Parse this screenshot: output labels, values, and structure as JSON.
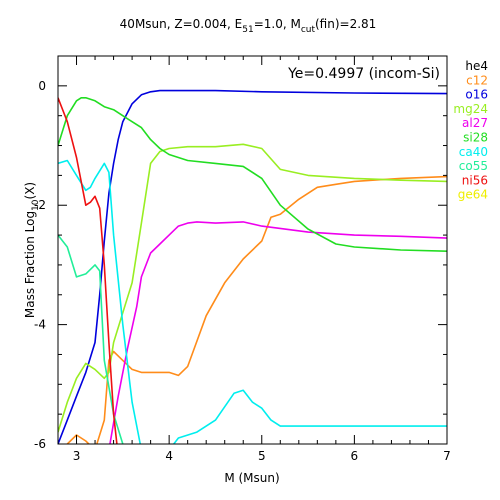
{
  "chart_data": {
    "type": "line",
    "title": {
      "main": "40Msun, Z=0.004, E",
      "e_sub": "51",
      "mid": "=1.0, M",
      "m_sub": "cut",
      "end": "(fin)=2.81"
    },
    "annotation": "Ye=0.4997 (incom-Si)",
    "xlabel": "M (Msun)",
    "ylabel": {
      "main": "Mass Fraction Log",
      "sub": "10",
      "end": "(X)"
    },
    "xlim": [
      2.8,
      7.0
    ],
    "ylim": [
      -6,
      0.5
    ],
    "xticks": [
      3,
      4,
      5,
      6,
      7
    ],
    "yticks": [
      0,
      -2,
      -4,
      -6
    ],
    "legend_position": "right",
    "series": [
      {
        "name": "he4",
        "color": "#000000",
        "x": [],
        "y": []
      },
      {
        "name": "c12",
        "color": "#ff8c1a",
        "x": [
          2.8,
          2.9,
          3.0,
          3.1,
          3.2,
          3.3,
          3.35,
          3.4,
          3.5,
          3.6,
          3.7,
          3.8,
          4.0,
          4.1,
          4.2,
          4.4,
          4.6,
          4.8,
          5.0,
          5.1,
          5.2,
          5.4,
          5.6,
          5.8,
          6.0,
          6.5,
          7.0
        ],
        "y": [
          -6.1,
          -6.0,
          -5.85,
          -5.95,
          -6.1,
          -5.6,
          -4.6,
          -4.45,
          -4.6,
          -4.75,
          -4.8,
          -4.8,
          -4.8,
          -4.85,
          -4.7,
          -3.85,
          -3.3,
          -2.9,
          -2.6,
          -2.2,
          -2.15,
          -1.9,
          -1.7,
          -1.65,
          -1.6,
          -1.55,
          -1.52
        ]
      },
      {
        "name": "o16",
        "color": "#0000dd",
        "x": [
          2.8,
          2.9,
          3.0,
          3.1,
          3.2,
          3.25,
          3.3,
          3.35,
          3.4,
          3.45,
          3.5,
          3.6,
          3.7,
          3.8,
          3.9,
          4.0,
          4.5,
          5.0,
          6.0,
          7.0
        ],
        "y": [
          -6.0,
          -5.6,
          -5.2,
          -4.8,
          -4.3,
          -3.5,
          -2.6,
          -1.8,
          -1.3,
          -0.9,
          -0.6,
          -0.3,
          -0.15,
          -0.1,
          -0.08,
          -0.08,
          -0.08,
          -0.1,
          -0.12,
          -0.13
        ]
      },
      {
        "name": "mg24",
        "color": "#99ee22",
        "x": [
          2.8,
          2.9,
          3.0,
          3.1,
          3.2,
          3.3,
          3.35,
          3.4,
          3.5,
          3.6,
          3.7,
          3.8,
          3.9,
          4.0,
          4.2,
          4.5,
          4.8,
          5.0,
          5.2,
          5.5,
          6.0,
          6.5,
          7.0
        ],
        "y": [
          -5.8,
          -5.3,
          -4.9,
          -4.65,
          -4.75,
          -4.9,
          -4.8,
          -4.3,
          -3.8,
          -3.3,
          -2.3,
          -1.3,
          -1.1,
          -1.05,
          -1.02,
          -1.02,
          -0.98,
          -1.05,
          -1.4,
          -1.5,
          -1.55,
          -1.58,
          -1.6
        ]
      },
      {
        "name": "al27",
        "color": "#ee00ee",
        "x": [
          3.35,
          3.45,
          3.55,
          3.65,
          3.7,
          3.8,
          3.9,
          4.0,
          4.1,
          4.2,
          4.3,
          4.5,
          4.8,
          5.0,
          5.5,
          6.0,
          6.5,
          7.0
        ],
        "y": [
          -6.1,
          -5.2,
          -4.4,
          -3.7,
          -3.2,
          -2.8,
          -2.65,
          -2.5,
          -2.35,
          -2.3,
          -2.28,
          -2.3,
          -2.28,
          -2.35,
          -2.45,
          -2.5,
          -2.52,
          -2.55
        ]
      },
      {
        "name": "si28",
        "color": "#22dd22",
        "x": [
          2.8,
          2.9,
          3.0,
          3.05,
          3.1,
          3.2,
          3.3,
          3.4,
          3.5,
          3.6,
          3.7,
          3.8,
          3.9,
          4.0,
          4.2,
          4.5,
          4.8,
          5.0,
          5.2,
          5.5,
          5.8,
          6.0,
          6.5,
          7.0
        ],
        "y": [
          -1.0,
          -0.5,
          -0.25,
          -0.2,
          -0.2,
          -0.25,
          -0.35,
          -0.4,
          -0.5,
          -0.6,
          -0.7,
          -0.9,
          -1.05,
          -1.15,
          -1.25,
          -1.3,
          -1.35,
          -1.55,
          -2.0,
          -2.4,
          -2.65,
          -2.7,
          -2.75,
          -2.77
        ]
      },
      {
        "name": "ca40",
        "color": "#00eeee",
        "x": [
          2.8,
          2.9,
          3.0,
          3.1,
          3.15,
          3.2,
          3.3,
          3.35,
          3.4,
          3.5,
          3.6,
          3.7,
          3.75,
          3.8,
          4.0,
          4.1,
          4.3,
          4.5,
          4.7,
          4.8,
          4.9,
          5.0,
          5.1,
          5.2,
          5.5,
          6.0,
          7.0
        ],
        "y": [
          -1.3,
          -1.25,
          -1.5,
          -1.75,
          -1.7,
          -1.55,
          -1.3,
          -1.45,
          -2.5,
          -4.0,
          -5.3,
          -6.1,
          -6.2,
          -6.2,
          -6.1,
          -5.9,
          -5.8,
          -5.6,
          -5.15,
          -5.1,
          -5.3,
          -5.4,
          -5.6,
          -5.7,
          -5.7,
          -5.7,
          -5.7
        ]
      },
      {
        "name": "co55",
        "color": "#22ee99",
        "x": [
          2.8,
          2.9,
          3.0,
          3.1,
          3.2,
          3.25,
          3.3,
          3.4,
          3.5,
          3.6
        ],
        "y": [
          -2.5,
          -2.7,
          -3.2,
          -3.15,
          -3.0,
          -3.1,
          -4.6,
          -5.5,
          -6.0,
          -6.2
        ]
      },
      {
        "name": "ni56",
        "color": "#ee1111",
        "x": [
          2.8,
          2.9,
          3.0,
          3.1,
          3.15,
          3.2,
          3.25,
          3.3,
          3.35,
          3.4,
          3.45,
          3.5
        ],
        "y": [
          -0.2,
          -0.6,
          -1.2,
          -2.0,
          -1.95,
          -1.85,
          -2.05,
          -3.0,
          -4.3,
          -5.5,
          -6.2,
          -6.2
        ]
      },
      {
        "name": "ge64",
        "color": "#eeee00",
        "x": [],
        "y": []
      }
    ]
  }
}
